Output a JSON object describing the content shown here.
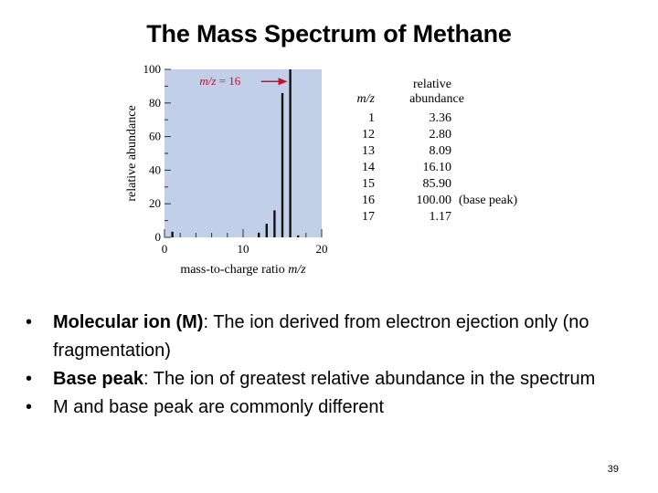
{
  "slide": {
    "title": "The Mass Spectrum of Methane",
    "page_number": "39",
    "bullets": [
      {
        "term": "Molecular ion (M)",
        "text": ": The ion derived from electron ejection only (no fragmentation)"
      },
      {
        "term": "Base peak",
        "text": ": The ion of greatest relative abundance in the spectrum"
      },
      {
        "term": "",
        "text": "M and base peak are commonly different"
      }
    ]
  },
  "chart_data": {
    "type": "bar",
    "xlabel": "mass-to-charge ratio",
    "xlabel_italic": "m/z",
    "ylabel": "relative abundance",
    "xlim": [
      0,
      20
    ],
    "ylim": [
      0,
      100
    ],
    "xticks": [
      "0",
      "10",
      "20"
    ],
    "yticks": [
      "0",
      "20",
      "40",
      "60",
      "80",
      "100"
    ],
    "annotation": {
      "prefix": "m/z",
      "text": " = 16",
      "x": 16,
      "y": 95
    },
    "background": "#c2cfe8",
    "bar_color": "#111111",
    "series": [
      {
        "values": [
          {
            "mz": 1,
            "abundance": 3.36
          },
          {
            "mz": 12,
            "abundance": 2.8
          },
          {
            "mz": 13,
            "abundance": 8.09
          },
          {
            "mz": 14,
            "abundance": 16.1
          },
          {
            "mz": 15,
            "abundance": 85.9
          },
          {
            "mz": 16,
            "abundance": 100.0
          },
          {
            "mz": 17,
            "abundance": 1.17
          }
        ]
      }
    ],
    "table": {
      "col1_header": "m/z",
      "col2_header_line1": "relative",
      "col2_header_line2": "abundance",
      "rows": [
        {
          "mz": "1",
          "value": "3.36",
          "note": ""
        },
        {
          "mz": "12",
          "value": "2.80",
          "note": ""
        },
        {
          "mz": "13",
          "value": "8.09",
          "note": ""
        },
        {
          "mz": "14",
          "value": "16.10",
          "note": ""
        },
        {
          "mz": "15",
          "value": "85.90",
          "note": ""
        },
        {
          "mz": "16",
          "value": "100.00",
          "note": "(base peak)"
        },
        {
          "mz": "17",
          "value": "1.17",
          "note": ""
        }
      ]
    }
  }
}
